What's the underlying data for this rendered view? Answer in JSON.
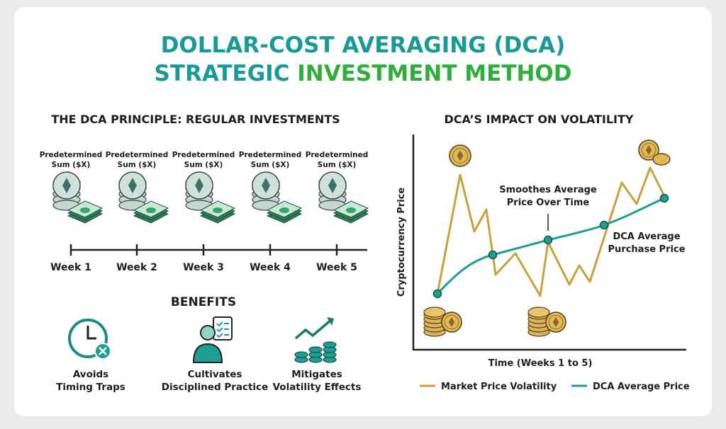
{
  "title": {
    "line1": "DOLLAR-COST AVERAGING (DCA)",
    "line2_part1": "STRATEGIC",
    "line2_part2": "INVESTMENT METHOD"
  },
  "principle": {
    "heading": "THE DCA PRINCIPLE: REGULAR INVESTMENTS",
    "items": [
      {
        "label1": "Predetermined",
        "label2": "Sum ($X)",
        "week": "Week 1"
      },
      {
        "label1": "Predetermined",
        "label2": "Sum ($X)",
        "week": "Week 2"
      },
      {
        "label1": "Predetermined",
        "label2": "Sum ($X)",
        "week": "Week 3"
      },
      {
        "label1": "Predetermined",
        "label2": "Sum ($X)",
        "week": "Week 4"
      },
      {
        "label1": "Predetermined",
        "label2": "Sum ($X)",
        "week": "Week 5"
      }
    ]
  },
  "benefits": {
    "heading": "BENEFITS",
    "items": [
      {
        "icon": "clock-x-icon",
        "line1": "Avoids",
        "line2": "Timing Traps"
      },
      {
        "icon": "person-checklist-icon",
        "line1": "Cultivates",
        "line2": "Disciplined Practice"
      },
      {
        "icon": "coins-trend-up-icon",
        "line1": "Mitigates",
        "line2": "Volatility Effects"
      }
    ]
  },
  "volatility": {
    "heading": "DCA’S IMPACT ON VOLATILITY",
    "ylabel": "Cryptocurrency Price",
    "xlabel": "Time (Weeks 1 to 5)",
    "annotation_smooth1": "Smoothes Average",
    "annotation_smooth2": "Price Over Time",
    "annotation_dca1": "DCA Average",
    "annotation_dca2": "Purchase Price",
    "legend": [
      {
        "name": "Market Price Volatility",
        "color": "#c9a13b"
      },
      {
        "name": "DCA Average Price",
        "color": "#1f9e96"
      }
    ]
  },
  "colors": {
    "teal": "#1a9a96",
    "green": "#2fae3e",
    "gold": "#c9a13b",
    "cash": "#2e7d5b"
  }
}
